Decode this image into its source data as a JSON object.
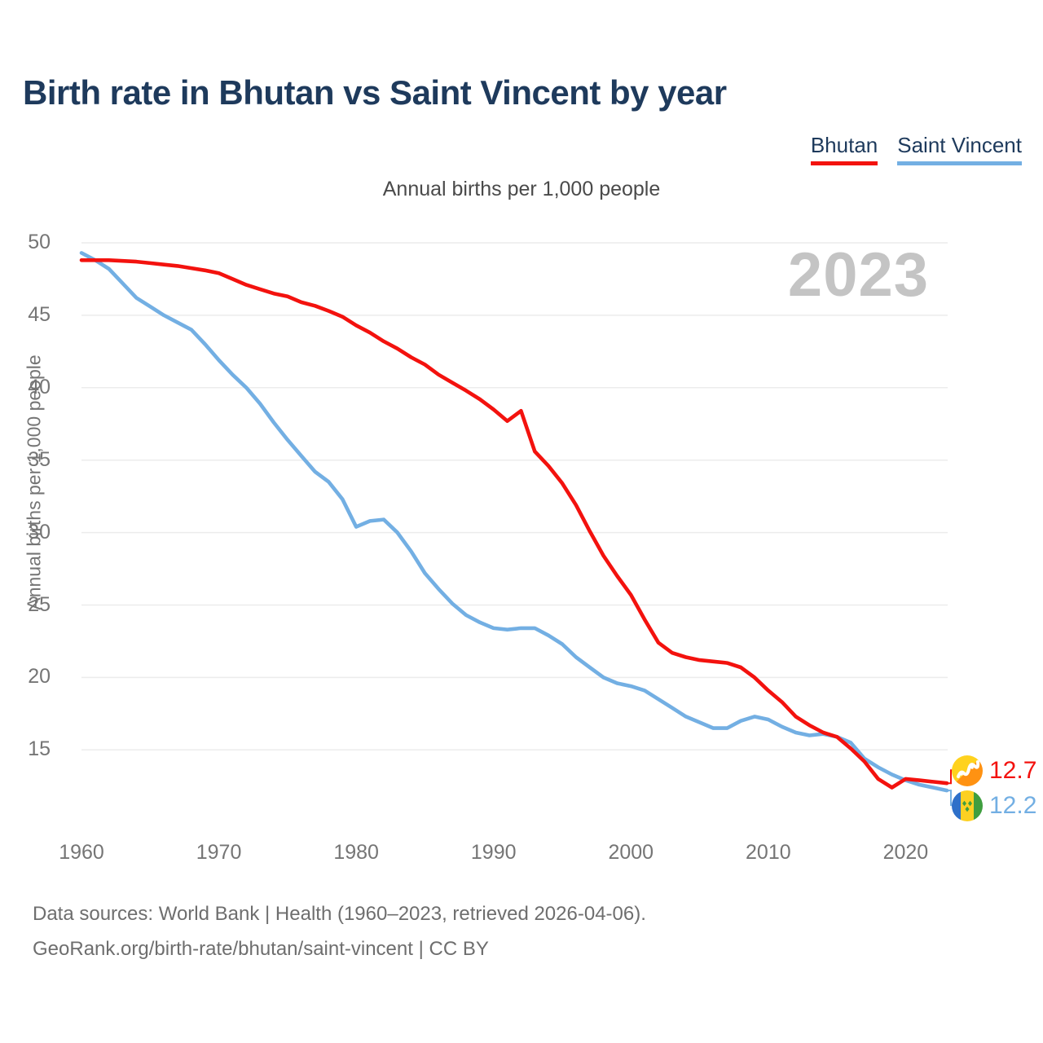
{
  "header": {
    "title": "Birth rate in Bhutan vs Saint Vincent by year"
  },
  "subtitle": "Annual births per 1,000 people",
  "watermark": "2023",
  "y_axis_title": "Annual births per 1,000 people",
  "footer": {
    "line1": "Data sources: World Bank | Health (1960–2023, retrieved 2026-04-06).",
    "line2": "GeoRank.org/birth-rate/bhutan/saint-vincent | CC BY"
  },
  "end_labels": [
    {
      "series": "Bhutan",
      "value": "12.7",
      "flag": "bhutan-flag"
    },
    {
      "series": "Saint Vincent",
      "value": "12.2",
      "flag": "saint-vincent-flag"
    }
  ],
  "chart_data": {
    "type": "line",
    "title": "Birth rate in Bhutan vs Saint Vincent by year",
    "subtitle": "Annual births per 1,000 people",
    "ylabel": "Annual births per 1,000 people",
    "xlabel": "",
    "grid": "horizontal",
    "legend_position": "top-right",
    "xlim": [
      1960,
      2023
    ],
    "ylim": [
      11,
      51
    ],
    "yticks": [
      15,
      20,
      25,
      30,
      35,
      40,
      45,
      50
    ],
    "xticks": [
      1960,
      1970,
      1980,
      1990,
      2000,
      2010,
      2020
    ],
    "x": [
      1960,
      1961,
      1962,
      1963,
      1964,
      1965,
      1966,
      1967,
      1968,
      1969,
      1970,
      1971,
      1972,
      1973,
      1974,
      1975,
      1976,
      1977,
      1978,
      1979,
      1980,
      1981,
      1982,
      1983,
      1984,
      1985,
      1986,
      1987,
      1988,
      1989,
      1990,
      1991,
      1992,
      1993,
      1994,
      1995,
      1996,
      1997,
      1998,
      1999,
      2000,
      2001,
      2002,
      2003,
      2004,
      2005,
      2006,
      2007,
      2008,
      2009,
      2010,
      2011,
      2012,
      2013,
      2014,
      2015,
      2016,
      2017,
      2018,
      2019,
      2020,
      2021,
      2022,
      2023
    ],
    "series": [
      {
        "name": "Bhutan",
        "color": "#f3120e",
        "end_value": 12.7,
        "values": [
          48.8,
          48.8,
          48.8,
          48.75,
          48.7,
          48.6,
          48.5,
          48.4,
          48.25,
          48.1,
          47.9,
          47.5,
          47.1,
          46.8,
          46.5,
          46.3,
          45.9,
          45.65,
          45.3,
          44.9,
          44.3,
          43.8,
          43.2,
          42.7,
          42.1,
          41.6,
          40.9,
          40.35,
          39.8,
          39.2,
          38.5,
          37.7,
          38.4,
          35.6,
          34.6,
          33.4,
          31.9,
          30.1,
          28.4,
          27.0,
          25.7,
          24.0,
          22.4,
          21.7,
          21.4,
          21.2,
          21.1,
          21.0,
          20.7,
          20.0,
          19.1,
          18.3,
          17.3,
          16.7,
          16.2,
          15.9,
          15.1,
          14.2,
          13.0,
          12.4,
          13.0,
          12.9,
          12.8,
          12.7
        ]
      },
      {
        "name": "Saint Vincent",
        "color": "#73afe3",
        "end_value": 12.2,
        "values": [
          49.3,
          48.8,
          48.2,
          47.2,
          46.2,
          45.6,
          45.0,
          44.5,
          44.0,
          43.0,
          41.9,
          40.9,
          40.0,
          38.9,
          37.6,
          36.4,
          35.3,
          34.2,
          33.5,
          32.3,
          30.4,
          30.8,
          30.9,
          30.0,
          28.7,
          27.2,
          26.1,
          25.1,
          24.3,
          23.8,
          23.4,
          23.3,
          23.4,
          23.4,
          22.9,
          22.3,
          21.4,
          20.7,
          20.0,
          19.6,
          19.4,
          19.1,
          18.5,
          17.9,
          17.3,
          16.9,
          16.5,
          16.5,
          17.0,
          17.3,
          17.1,
          16.6,
          16.2,
          16.0,
          16.1,
          15.9,
          15.5,
          14.4,
          13.8,
          13.3,
          12.9,
          12.6,
          12.4,
          12.2
        ]
      }
    ]
  }
}
